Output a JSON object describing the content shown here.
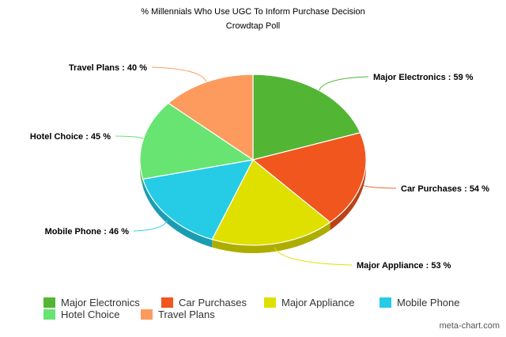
{
  "chart_data": {
    "type": "pie",
    "title": "% Millennials Who Use UGC To Inform Purchase Decision",
    "subtitle": "Crowdtap Poll",
    "slices": [
      {
        "name": "Major Electronics",
        "value": 59,
        "label": "Major Electronics : 59 %",
        "color": "#52b534",
        "side": "#3f8c28"
      },
      {
        "name": "Car Purchases",
        "value": 54,
        "label": "Car Purchases : 54 %",
        "color": "#f0561e",
        "side": "#bb4214"
      },
      {
        "name": "Major Appliance",
        "value": 53,
        "label": "Major Appliance : 53 %",
        "color": "#dfe000",
        "side": "#adad00"
      },
      {
        "name": "Mobile Phone",
        "value": 46,
        "label": "Mobile Phone : 46 %",
        "color": "#26cbe5",
        "side": "#1a9db2"
      },
      {
        "name": "Hotel Choice",
        "value": 45,
        "label": "Hotel Choice : 45 %",
        "color": "#67e471",
        "side": "#4bb453"
      },
      {
        "name": "Travel Plans",
        "value": 40,
        "label": "Travel Plans : 40 %",
        "color": "#fc9b5d",
        "side": "#c77741"
      }
    ],
    "legend_placement": "bottom-left"
  },
  "credit": "meta-chart.com"
}
